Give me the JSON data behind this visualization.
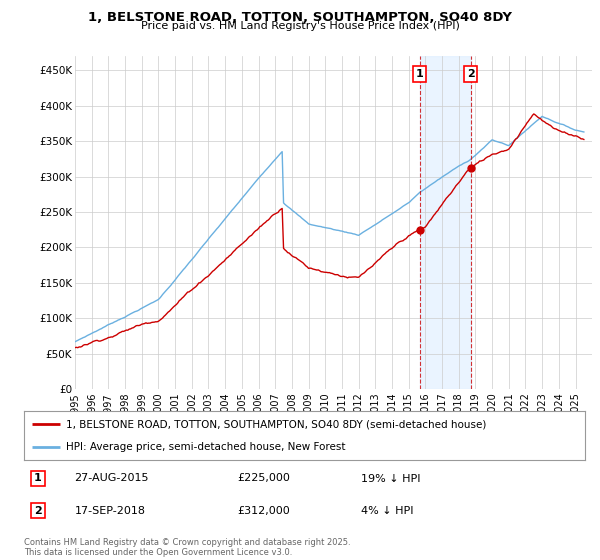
{
  "title_line1": "1, BELSTONE ROAD, TOTTON, SOUTHAMPTON, SO40 8DY",
  "title_line2": "Price paid vs. HM Land Registry's House Price Index (HPI)",
  "ylabel_ticks": [
    "£0",
    "£50K",
    "£100K",
    "£150K",
    "£200K",
    "£250K",
    "£300K",
    "£350K",
    "£400K",
    "£450K"
  ],
  "ytick_vals": [
    0,
    50000,
    100000,
    150000,
    200000,
    250000,
    300000,
    350000,
    400000,
    450000
  ],
  "ylim": [
    0,
    470000
  ],
  "xlim_start": 1995.0,
  "xlim_end": 2026.0,
  "hpi_color": "#6ab0e0",
  "price_color": "#cc0000",
  "marker1_x": 2015.65,
  "marker1_y": 225000,
  "marker2_x": 2018.71,
  "marker2_y": 312000,
  "marker1_label": "1",
  "marker2_label": "2",
  "annotation1_date": "27-AUG-2015",
  "annotation1_price": "£225,000",
  "annotation1_hpi": "19% ↓ HPI",
  "annotation2_date": "17-SEP-2018",
  "annotation2_price": "£312,000",
  "annotation2_hpi": "4% ↓ HPI",
  "legend_line1": "1, BELSTONE ROAD, TOTTON, SOUTHAMPTON, SO40 8DY (semi-detached house)",
  "legend_line2": "HPI: Average price, semi-detached house, New Forest",
  "footer_line1": "Contains HM Land Registry data © Crown copyright and database right 2025.",
  "footer_line2": "This data is licensed under the Open Government Licence v3.0.",
  "background_color": "#ffffff",
  "grid_color": "#cccccc",
  "shade_color": "#ddeeff"
}
